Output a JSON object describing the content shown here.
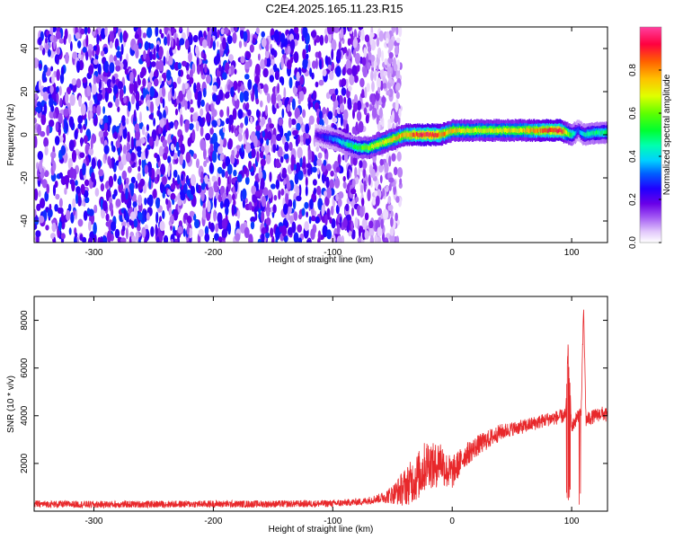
{
  "title": "C2E4.2025.165.11.23.R15",
  "chart_data": [
    {
      "type": "heatmap",
      "xlabel": "Height of straight line (km)",
      "ylabel": "Frequency (Hz)",
      "xlim": [
        -350,
        130
      ],
      "ylim": [
        -50,
        50
      ],
      "x_ticks": [
        -300,
        -200,
        -100,
        0,
        100
      ],
      "y_ticks": [
        -40,
        -20,
        0,
        20,
        40
      ],
      "colorbar": {
        "label": "Normalized spectral amplitude",
        "range": [
          0,
          1
        ],
        "ticks": [
          0.0,
          0.2,
          0.4,
          0.6,
          0.8
        ],
        "colors": [
          "#ffffff",
          "#e2c8fb",
          "#a055f3",
          "#6a00e8",
          "#2000ff",
          "#0060ff",
          "#00d0ff",
          "#00ffb0",
          "#00ff30",
          "#60ff00",
          "#e0ff00",
          "#ffc000",
          "#ff6000",
          "#ff0040",
          "#ff40a0"
        ]
      },
      "noise_region": {
        "x": [
          -350,
          -55
        ],
        "amplitude_range": [
          0.05,
          0.3
        ]
      },
      "signal_track": {
        "x": [
          -115,
          -100,
          -90,
          -80,
          -70,
          -60,
          -50,
          -40,
          -30,
          -20,
          -10,
          0,
          20,
          40,
          60,
          80,
          90,
          100,
          105,
          110,
          120,
          130
        ],
        "freq": [
          0,
          -2,
          -4,
          -6,
          -6,
          -4,
          -2,
          0,
          0,
          0,
          0,
          2,
          2,
          2,
          2,
          2,
          2,
          0,
          2,
          0,
          1,
          1
        ],
        "amplitude": [
          0.2,
          0.35,
          0.45,
          0.55,
          0.65,
          0.7,
          0.75,
          0.8,
          0.9,
          0.95,
          0.85,
          0.75,
          0.7,
          0.72,
          0.75,
          0.9,
          0.95,
          0.5,
          0.3,
          0.45,
          0.5,
          0.5
        ]
      }
    },
    {
      "type": "line",
      "xlabel": "Height of straight line (km)",
      "ylabel": "SNR (10 * v/v)",
      "xlim": [
        -350,
        130
      ],
      "ylim": [
        0,
        9000
      ],
      "x_ticks": [
        -300,
        -200,
        -100,
        0,
        100
      ],
      "y_ticks": [
        2000,
        4000,
        6000,
        8000
      ],
      "series": [
        {
          "color": "#e8282b",
          "x": [
            -350,
            -300,
            -250,
            -200,
            -150,
            -100,
            -75,
            -60,
            -50,
            -40,
            -30,
            -25,
            -20,
            -15,
            -10,
            -5,
            0,
            10,
            20,
            30,
            40,
            50,
            60,
            70,
            80,
            90,
            95,
            97,
            100,
            105,
            108,
            110,
            112,
            115,
            120,
            125,
            130
          ],
          "y": [
            300,
            280,
            290,
            300,
            300,
            320,
            400,
            550,
            700,
            1000,
            1400,
            1700,
            2100,
            1800,
            2200,
            1700,
            1600,
            2300,
            2700,
            3000,
            3300,
            3450,
            3550,
            3700,
            3850,
            3950,
            4000,
            6800,
            3500,
            4000,
            4200,
            8500,
            3800,
            3900,
            4000,
            4100,
            4000
          ],
          "noise": [
            150,
            150,
            150,
            150,
            150,
            150,
            150,
            200,
            400,
            800,
            1000,
            1100,
            1000,
            1000,
            900,
            800,
            700,
            500,
            450,
            400,
            350,
            300,
            300,
            300,
            300,
            300,
            300,
            300,
            300,
            300,
            300,
            300,
            300,
            300,
            300,
            300,
            300
          ]
        }
      ]
    }
  ]
}
